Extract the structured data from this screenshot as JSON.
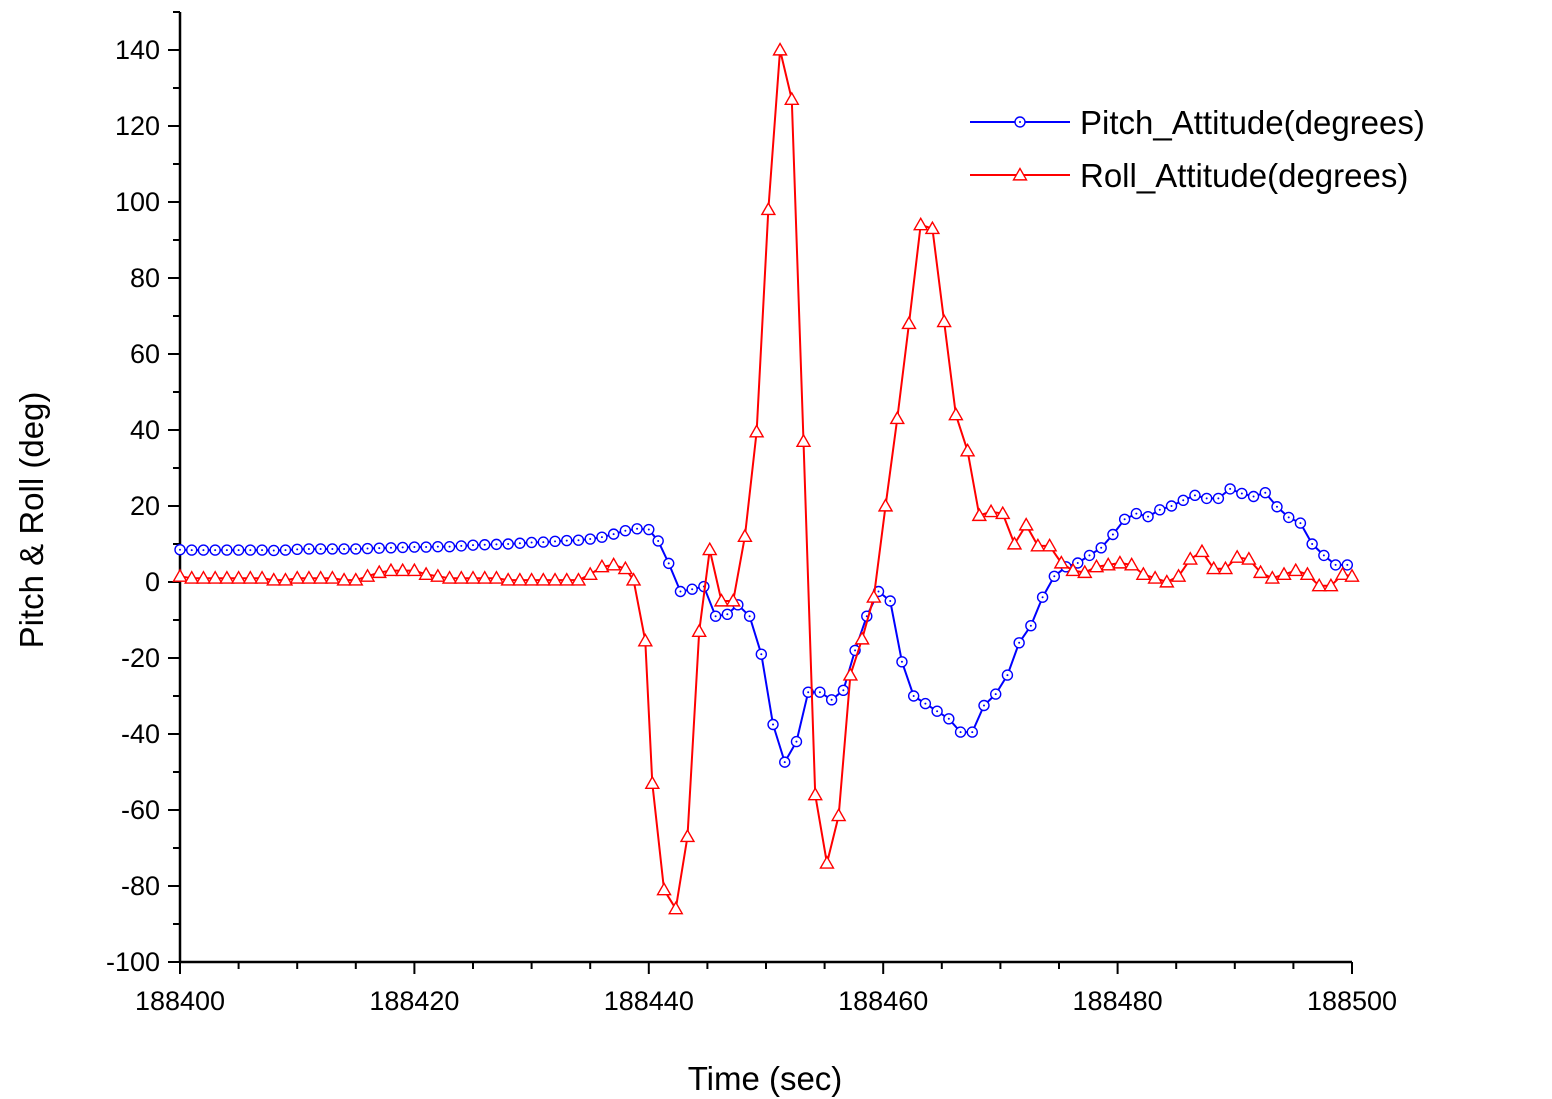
{
  "chart_data": {
    "type": "line",
    "title": "",
    "xlabel": "Time (sec)",
    "ylabel": "Pitch & Roll (deg)",
    "xlim": [
      188400,
      188500
    ],
    "ylim": [
      -100,
      150
    ],
    "x_ticks": [
      188400,
      188420,
      188440,
      188460,
      188480,
      188500
    ],
    "x_tick_labels": [
      "188400",
      "188420",
      "188440",
      "188460",
      "188480",
      "188500"
    ],
    "y_ticks": [
      -100,
      -80,
      -60,
      -40,
      -20,
      0,
      20,
      40,
      60,
      80,
      100,
      120,
      140
    ],
    "y_tick_labels": [
      "-100",
      "-80",
      "-60",
      "-40",
      "-20",
      "0",
      "20",
      "40",
      "60",
      "80",
      "100",
      "120",
      "140"
    ],
    "grid": false,
    "legend_position": "top-right",
    "series": [
      {
        "name": "Pitch_Attitude(degrees)",
        "color": "#0000ff",
        "marker": "circle",
        "points": [
          [
            188400.0,
            8.5
          ],
          [
            188401.0,
            8.4
          ],
          [
            188402.0,
            8.4
          ],
          [
            188403.0,
            8.4
          ],
          [
            188404.0,
            8.4
          ],
          [
            188405.0,
            8.4
          ],
          [
            188406.0,
            8.4
          ],
          [
            188407.0,
            8.4
          ],
          [
            188408.0,
            8.3
          ],
          [
            188409.0,
            8.4
          ],
          [
            188410.0,
            8.6
          ],
          [
            188411.0,
            8.7
          ],
          [
            188412.0,
            8.7
          ],
          [
            188413.0,
            8.7
          ],
          [
            188414.0,
            8.7
          ],
          [
            188415.0,
            8.7
          ],
          [
            188416.0,
            8.8
          ],
          [
            188417.0,
            8.9
          ],
          [
            188418.0,
            9.0
          ],
          [
            188419.0,
            9.1
          ],
          [
            188420.0,
            9.2
          ],
          [
            188421.0,
            9.2
          ],
          [
            188422.0,
            9.3
          ],
          [
            188423.0,
            9.3
          ],
          [
            188424.0,
            9.5
          ],
          [
            188425.0,
            9.7
          ],
          [
            188426.0,
            9.8
          ],
          [
            188427.0,
            9.9
          ],
          [
            188428.0,
            10.0
          ],
          [
            188429.0,
            10.2
          ],
          [
            188430.0,
            10.4
          ],
          [
            188431.0,
            10.5
          ],
          [
            188432.0,
            10.7
          ],
          [
            188433.0,
            10.9
          ],
          [
            188434.0,
            11.0
          ],
          [
            188435.0,
            11.3
          ],
          [
            188436.0,
            11.8
          ],
          [
            188437.0,
            12.6
          ],
          [
            188438.0,
            13.5
          ],
          [
            188439.0,
            14.0
          ],
          [
            188440.0,
            13.8
          ],
          [
            188440.8,
            10.8
          ],
          [
            188441.7,
            4.9
          ],
          [
            188442.7,
            -2.5
          ],
          [
            188443.7,
            -1.9
          ],
          [
            188444.7,
            -1.2
          ],
          [
            188445.7,
            -9.0
          ],
          [
            188446.7,
            -8.5
          ],
          [
            188447.6,
            -6.0
          ],
          [
            188448.6,
            -9.0
          ],
          [
            188449.6,
            -19.0
          ],
          [
            188450.6,
            -37.5
          ],
          [
            188451.6,
            -47.4
          ],
          [
            188452.6,
            -42.0
          ],
          [
            188453.6,
            -29.0
          ],
          [
            188454.6,
            -29.0
          ],
          [
            188455.6,
            -31.0
          ],
          [
            188456.6,
            -28.5
          ],
          [
            188457.6,
            -18.0
          ],
          [
            188458.6,
            -9.0
          ],
          [
            188459.6,
            -2.5
          ],
          [
            188460.6,
            -5.0
          ],
          [
            188461.6,
            -21.0
          ],
          [
            188462.6,
            -30.0
          ],
          [
            188463.6,
            -32.0
          ],
          [
            188464.6,
            -34.0
          ],
          [
            188465.6,
            -36.0
          ],
          [
            188466.6,
            -39.5
          ],
          [
            188467.6,
            -39.5
          ],
          [
            188468.6,
            -32.5
          ],
          [
            188469.6,
            -29.5
          ],
          [
            188470.6,
            -24.5
          ],
          [
            188471.6,
            -16.0
          ],
          [
            188472.6,
            -11.5
          ],
          [
            188473.6,
            -4.0
          ],
          [
            188474.6,
            1.5
          ],
          [
            188475.6,
            4.0
          ],
          [
            188476.6,
            5.0
          ],
          [
            188477.6,
            7.0
          ],
          [
            188478.6,
            9.0
          ],
          [
            188479.6,
            12.5
          ],
          [
            188480.6,
            16.5
          ],
          [
            188481.6,
            18.0
          ],
          [
            188482.6,
            17.2
          ],
          [
            188483.6,
            19.0
          ],
          [
            188484.6,
            20.0
          ],
          [
            188485.6,
            21.5
          ],
          [
            188486.6,
            22.8
          ],
          [
            188487.6,
            22.0
          ],
          [
            188488.6,
            22.0
          ],
          [
            188489.6,
            24.5
          ],
          [
            188490.6,
            23.3
          ],
          [
            188491.6,
            22.5
          ],
          [
            188492.6,
            23.5
          ],
          [
            188493.6,
            19.8
          ],
          [
            188494.6,
            17.0
          ],
          [
            188495.6,
            15.5
          ],
          [
            188496.6,
            10.0
          ],
          [
            188497.6,
            7.0
          ],
          [
            188498.6,
            4.5
          ],
          [
            188499.6,
            4.5
          ]
        ]
      },
      {
        "name": "Roll_Attitude(degrees)",
        "color": "#ff0000",
        "marker": "triangle",
        "points": [
          [
            188400.0,
            1.5
          ],
          [
            188401.0,
            1.0
          ],
          [
            188402.0,
            1.0
          ],
          [
            188403.0,
            1.0
          ],
          [
            188404.0,
            1.0
          ],
          [
            188405.0,
            1.0
          ],
          [
            188406.0,
            1.0
          ],
          [
            188407.0,
            1.0
          ],
          [
            188408.0,
            0.5
          ],
          [
            188409.0,
            0.5
          ],
          [
            188410.0,
            1.0
          ],
          [
            188411.0,
            1.0
          ],
          [
            188412.0,
            1.0
          ],
          [
            188413.0,
            1.0
          ],
          [
            188414.0,
            0.5
          ],
          [
            188415.0,
            0.5
          ],
          [
            188416.0,
            1.5
          ],
          [
            188417.0,
            2.5
          ],
          [
            188418.0,
            3.0
          ],
          [
            188419.0,
            3.0
          ],
          [
            188420.0,
            3.0
          ],
          [
            188421.0,
            2.0
          ],
          [
            188422.0,
            1.5
          ],
          [
            188423.0,
            1.0
          ],
          [
            188424.0,
            1.0
          ],
          [
            188425.0,
            1.0
          ],
          [
            188426.0,
            1.0
          ],
          [
            188427.0,
            1.0
          ],
          [
            188428.0,
            0.5
          ],
          [
            188429.0,
            0.5
          ],
          [
            188430.0,
            0.5
          ],
          [
            188431.0,
            0.5
          ],
          [
            188432.0,
            0.5
          ],
          [
            188433.0,
            0.5
          ],
          [
            188434.0,
            0.5
          ],
          [
            188435.0,
            2.0
          ],
          [
            188436.0,
            4.0
          ],
          [
            188437.0,
            4.5
          ],
          [
            188438.0,
            3.5
          ],
          [
            188438.7,
            0.5
          ],
          [
            188439.7,
            -15.5
          ],
          [
            188440.3,
            -53.0
          ],
          [
            188441.3,
            -81.0
          ],
          [
            188442.3,
            -86.0
          ],
          [
            188443.3,
            -67.0
          ],
          [
            188444.3,
            -13.0
          ],
          [
            188445.2,
            8.5
          ],
          [
            188446.2,
            -5.0
          ],
          [
            188447.2,
            -5.0
          ],
          [
            188448.2,
            12.0
          ],
          [
            188449.2,
            39.5
          ],
          [
            188450.2,
            98.0
          ],
          [
            188451.2,
            140.0
          ],
          [
            188452.2,
            127.0
          ],
          [
            188453.2,
            37.0
          ],
          [
            188454.2,
            -56.0
          ],
          [
            188455.2,
            -74.0
          ],
          [
            188456.2,
            -61.5
          ],
          [
            188457.2,
            -24.5
          ],
          [
            188458.2,
            -15.0
          ],
          [
            188459.2,
            -4.0
          ],
          [
            188460.2,
            20.0
          ],
          [
            188461.2,
            43.0
          ],
          [
            188462.2,
            68.0
          ],
          [
            188463.2,
            94.0
          ],
          [
            188464.2,
            93.0
          ],
          [
            188465.2,
            68.5
          ],
          [
            188466.2,
            44.0
          ],
          [
            188467.2,
            34.5
          ],
          [
            188468.2,
            17.5
          ],
          [
            188469.2,
            18.5
          ],
          [
            188470.2,
            18.0
          ],
          [
            188471.2,
            10.0
          ],
          [
            188472.2,
            15.0
          ],
          [
            188473.2,
            9.5
          ],
          [
            188474.2,
            9.5
          ],
          [
            188475.2,
            5.0
          ],
          [
            188476.2,
            3.0
          ],
          [
            188477.2,
            2.5
          ],
          [
            188478.2,
            4.0
          ],
          [
            188479.2,
            4.5
          ],
          [
            188480.2,
            5.0
          ],
          [
            188481.2,
            4.5
          ],
          [
            188482.2,
            2.0
          ],
          [
            188483.2,
            1.0
          ],
          [
            188484.2,
            0.0
          ],
          [
            188485.2,
            1.5
          ],
          [
            188486.2,
            6.0
          ],
          [
            188487.2,
            8.0
          ],
          [
            188488.2,
            3.5
          ],
          [
            188489.2,
            3.5
          ],
          [
            188490.2,
            6.5
          ],
          [
            188491.2,
            6.0
          ],
          [
            188492.2,
            2.5
          ],
          [
            188493.2,
            1.0
          ],
          [
            188494.2,
            2.0
          ],
          [
            188495.2,
            3.0
          ],
          [
            188496.2,
            2.0
          ],
          [
            188497.2,
            -1.0
          ],
          [
            188498.2,
            -1.0
          ],
          [
            188499.2,
            2.0
          ],
          [
            188500.0,
            1.5
          ]
        ]
      }
    ]
  }
}
